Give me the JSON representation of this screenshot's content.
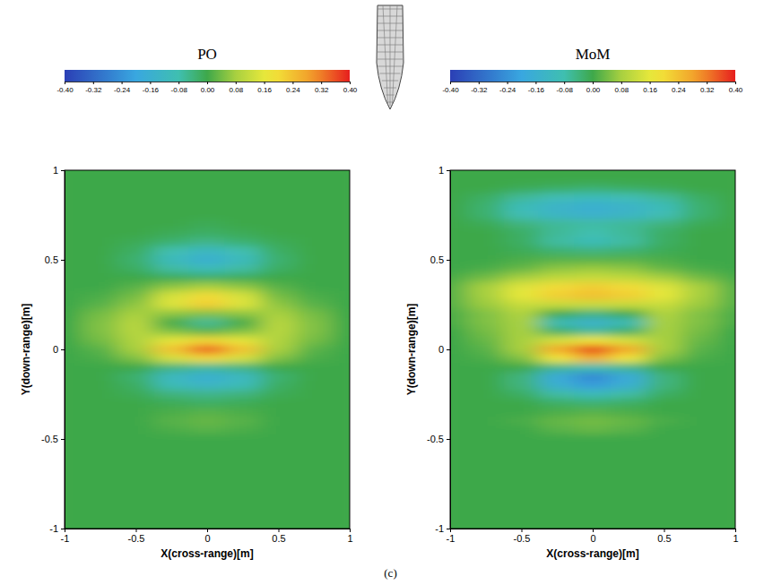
{
  "caption": "(c)",
  "chart_data": [
    {
      "type": "heatmap",
      "title": "PO",
      "xlabel": "X(cross-range)[m]",
      "ylabel": "Y(down-range)[m]",
      "xlim": [
        -1,
        1
      ],
      "ylim": [
        -1,
        1
      ],
      "xticks": [
        -1,
        -0.5,
        0,
        0.5,
        1
      ],
      "yticks": [
        -1,
        -0.5,
        0,
        0.5,
        1
      ],
      "colorbar_range": [
        -0.4,
        0.4
      ],
      "colorbar_ticks": [
        {
          "value": -0.4,
          "label": "-0.40"
        },
        {
          "value": -0.32,
          "label": "-0.32"
        },
        {
          "value": -0.24,
          "label": "-0.24"
        },
        {
          "value": -0.16,
          "label": "-0.16"
        },
        {
          "value": -0.08,
          "label": "-0.08"
        },
        {
          "value": 0,
          "label": "0.00"
        },
        {
          "value": 0.08,
          "label": "0.08"
        },
        {
          "value": 0.16,
          "label": "0.16"
        },
        {
          "value": 0.24,
          "label": "0.24"
        },
        {
          "value": 0.32,
          "label": "0.32"
        },
        {
          "value": 0.4,
          "label": "0.40"
        }
      ],
      "x": [
        -1,
        -0.75,
        -0.5,
        -0.25,
        0,
        0.25,
        0.5,
        0.75,
        1
      ],
      "y": [
        1,
        0.95,
        0.9,
        0.85,
        0.8,
        0.75,
        0.7,
        0.65,
        0.6,
        0.55,
        0.5,
        0.45,
        0.4,
        0.35,
        0.3,
        0.25,
        0.2,
        0.15,
        0.1,
        0.05,
        0,
        -0.05,
        -0.1,
        -0.15,
        -0.2,
        -0.25,
        -0.3,
        -0.35,
        -0.4,
        -0.45,
        -0.5,
        -0.55,
        -0.6,
        -0.65,
        -0.7,
        -0.75,
        -0.8,
        -0.85,
        -0.9,
        -0.95,
        -1
      ],
      "cells": [
        [
          0,
          0,
          0,
          0,
          0,
          0,
          0,
          0,
          0
        ],
        [
          0,
          0,
          0,
          0,
          0,
          0,
          0,
          0,
          0
        ],
        [
          0,
          0,
          0,
          0,
          0,
          0,
          0,
          0,
          0
        ],
        [
          0,
          0,
          0,
          0,
          0,
          0,
          0,
          0,
          0
        ],
        [
          0,
          0,
          0,
          0,
          0,
          0,
          0,
          0,
          0
        ],
        [
          0,
          0,
          0,
          0,
          0,
          0,
          0,
          0,
          0
        ],
        [
          0,
          0,
          0,
          0,
          -0.01,
          0,
          0,
          0,
          0
        ],
        [
          0,
          0,
          0,
          -0.01,
          -0.02,
          -0.01,
          0,
          0,
          0
        ],
        [
          0,
          0,
          -0.01,
          -0.03,
          -0.05,
          -0.03,
          -0.01,
          0,
          0
        ],
        [
          0,
          0,
          -0.02,
          -0.08,
          -0.12,
          -0.08,
          -0.02,
          0,
          0
        ],
        [
          0,
          0,
          -0.03,
          -0.11,
          -0.16,
          -0.11,
          -0.03,
          0,
          0
        ],
        [
          0,
          0,
          -0.02,
          -0.07,
          -0.1,
          -0.07,
          -0.02,
          0,
          0
        ],
        [
          0,
          0,
          0,
          -0.01,
          -0.02,
          -0.01,
          0,
          0,
          0
        ],
        [
          0,
          0,
          0.02,
          0.06,
          0.08,
          0.06,
          0.02,
          0,
          0
        ],
        [
          0,
          0.01,
          0.04,
          0.14,
          0.2,
          0.14,
          0.04,
          0.01,
          0
        ],
        [
          0,
          0.02,
          0.06,
          0.15,
          0.22,
          0.15,
          0.06,
          0.02,
          0
        ],
        [
          0,
          0.04,
          0.08,
          0.06,
          0.05,
          0.06,
          0.08,
          0.04,
          0
        ],
        [
          0,
          0.05,
          0.1,
          0,
          -0.06,
          0,
          0.1,
          0.05,
          0
        ],
        [
          0,
          0.05,
          0.1,
          0.05,
          0.02,
          0.05,
          0.1,
          0.05,
          0
        ],
        [
          0,
          0.04,
          0.09,
          0.16,
          0.2,
          0.16,
          0.09,
          0.04,
          0
        ],
        [
          0,
          0.02,
          0.08,
          0.24,
          0.36,
          0.24,
          0.08,
          0.02,
          0
        ],
        [
          0,
          0.01,
          0.05,
          0.14,
          0.2,
          0.14,
          0.05,
          0.01,
          0
        ],
        [
          0,
          0,
          0,
          -0.04,
          -0.06,
          -0.04,
          0,
          0,
          0
        ],
        [
          0,
          0,
          -0.03,
          -0.12,
          -0.16,
          -0.12,
          -0.03,
          0,
          0
        ],
        [
          0,
          0,
          -0.02,
          -0.1,
          -0.13,
          -0.1,
          -0.02,
          0,
          0
        ],
        [
          0,
          0,
          -0.01,
          -0.04,
          -0.05,
          -0.04,
          -0.01,
          0,
          0
        ],
        [
          0,
          0,
          0,
          -0.01,
          -0.02,
          -0.01,
          0,
          0,
          0
        ],
        [
          0,
          0,
          0,
          0.01,
          0.02,
          0.01,
          0,
          0,
          0
        ],
        [
          0,
          0,
          0,
          0.02,
          0.03,
          0.02,
          0,
          0,
          0
        ],
        [
          0,
          0,
          0,
          0.01,
          0.02,
          0.01,
          0,
          0,
          0
        ],
        [
          0,
          0,
          0,
          0,
          0,
          0,
          0,
          0,
          0
        ],
        [
          0,
          0,
          0,
          0,
          0,
          0,
          0,
          0,
          0
        ],
        [
          0,
          0,
          0,
          0,
          0,
          0,
          0,
          0,
          0
        ],
        [
          0,
          0,
          0,
          0,
          0,
          0,
          0,
          0,
          0
        ],
        [
          0,
          0,
          0,
          0,
          0,
          0,
          0,
          0,
          0
        ],
        [
          0,
          0,
          0,
          0,
          0,
          0,
          0,
          0,
          0
        ],
        [
          0,
          0,
          0,
          0,
          0,
          0,
          0,
          0,
          0
        ],
        [
          0,
          0,
          0,
          0,
          0,
          0,
          0,
          0,
          0
        ],
        [
          0,
          0,
          0,
          0,
          0,
          0,
          0,
          0,
          0
        ],
        [
          0,
          0,
          0,
          0,
          0,
          0,
          0,
          0,
          0
        ],
        [
          0,
          0,
          0,
          0,
          0,
          0,
          0,
          0,
          0
        ]
      ]
    },
    {
      "type": "heatmap",
      "title": "MoM",
      "xlabel": "X(cross-range)[m]",
      "ylabel": "Y(down-range)[m]",
      "xlim": [
        -1,
        1
      ],
      "ylim": [
        -1,
        1
      ],
      "xticks": [
        -1,
        -0.5,
        0,
        0.5,
        1
      ],
      "yticks": [
        -1,
        -0.5,
        0,
        0.5,
        1
      ],
      "colorbar_range": [
        -0.4,
        0.4
      ],
      "colorbar_ticks": [
        {
          "value": -0.4,
          "label": "-0.40"
        },
        {
          "value": -0.32,
          "label": "-0.32"
        },
        {
          "value": -0.24,
          "label": "-0.24"
        },
        {
          "value": -0.16,
          "label": "-0.16"
        },
        {
          "value": -0.08,
          "label": "-0.08"
        },
        {
          "value": 0,
          "label": "0.00"
        },
        {
          "value": 0.08,
          "label": "0.08"
        },
        {
          "value": 0.16,
          "label": "0.16"
        },
        {
          "value": 0.24,
          "label": "0.24"
        },
        {
          "value": 0.32,
          "label": "0.32"
        },
        {
          "value": 0.4,
          "label": "0.40"
        }
      ],
      "x": [
        -1,
        -0.75,
        -0.5,
        -0.25,
        0,
        0.25,
        0.5,
        0.75,
        1
      ],
      "y": [
        1,
        0.95,
        0.9,
        0.85,
        0.8,
        0.75,
        0.7,
        0.65,
        0.6,
        0.55,
        0.5,
        0.45,
        0.4,
        0.35,
        0.3,
        0.25,
        0.2,
        0.15,
        0.1,
        0.05,
        0,
        -0.05,
        -0.1,
        -0.15,
        -0.2,
        -0.25,
        -0.3,
        -0.35,
        -0.4,
        -0.45,
        -0.5,
        -0.55,
        -0.6,
        -0.65,
        -0.7,
        -0.75,
        -0.8,
        -0.85,
        -0.9,
        -0.95,
        -1
      ],
      "cells": [
        [
          0,
          0,
          0,
          0,
          0,
          0,
          0,
          0,
          0
        ],
        [
          0,
          0,
          0,
          0,
          0,
          0,
          0,
          0,
          0
        ],
        [
          0,
          0,
          -0.01,
          -0.02,
          -0.03,
          -0.02,
          -0.01,
          0,
          0
        ],
        [
          0,
          -0.02,
          -0.06,
          -0.09,
          -0.1,
          -0.09,
          -0.06,
          -0.02,
          0
        ],
        [
          0,
          -0.03,
          -0.1,
          -0.14,
          -0.16,
          -0.14,
          -0.1,
          -0.03,
          0
        ],
        [
          0,
          -0.03,
          -0.09,
          -0.13,
          -0.15,
          -0.13,
          -0.09,
          -0.03,
          0
        ],
        [
          0,
          -0.01,
          -0.04,
          -0.06,
          -0.07,
          -0.06,
          -0.04,
          -0.01,
          0
        ],
        [
          0,
          0,
          -0.02,
          -0.06,
          -0.08,
          -0.06,
          -0.02,
          0,
          0
        ],
        [
          0,
          0,
          -0.02,
          -0.07,
          -0.1,
          -0.07,
          -0.02,
          0,
          0
        ],
        [
          0,
          0,
          -0.01,
          -0.03,
          -0.04,
          -0.03,
          -0.01,
          0,
          0
        ],
        [
          0,
          0,
          0.01,
          0.02,
          0.02,
          0.02,
          0.01,
          0,
          0
        ],
        [
          0,
          0.01,
          0.03,
          0.06,
          0.07,
          0.06,
          0.03,
          0.01,
          0
        ],
        [
          0.01,
          0.04,
          0.08,
          0.11,
          0.12,
          0.11,
          0.08,
          0.04,
          0.01
        ],
        [
          0.02,
          0.08,
          0.15,
          0.2,
          0.22,
          0.2,
          0.15,
          0.08,
          0.02
        ],
        [
          0.02,
          0.08,
          0.16,
          0.22,
          0.24,
          0.22,
          0.16,
          0.08,
          0.02
        ],
        [
          0.02,
          0.07,
          0.12,
          0.12,
          0.12,
          0.12,
          0.12,
          0.07,
          0.02
        ],
        [
          0.01,
          0.05,
          0.09,
          0,
          -0.04,
          0,
          0.09,
          0.05,
          0.01
        ],
        [
          0.01,
          0.05,
          0.08,
          -0.1,
          -0.15,
          -0.1,
          0.08,
          0.05,
          0.01
        ],
        [
          0,
          0.04,
          0.08,
          -0.02,
          -0.06,
          -0.02,
          0.08,
          0.04,
          0
        ],
        [
          0,
          0.03,
          0.08,
          0.14,
          0.18,
          0.14,
          0.08,
          0.03,
          0
        ],
        [
          0,
          0.02,
          0.08,
          0.28,
          0.4,
          0.28,
          0.08,
          0.02,
          0
        ],
        [
          0,
          0.01,
          0.05,
          0.18,
          0.26,
          0.18,
          0.05,
          0.01,
          0
        ],
        [
          0,
          0,
          0,
          -0.05,
          -0.08,
          -0.05,
          0,
          0,
          0
        ],
        [
          0,
          0,
          -0.04,
          -0.18,
          -0.26,
          -0.18,
          -0.04,
          0,
          0
        ],
        [
          0,
          0,
          -0.04,
          -0.16,
          -0.22,
          -0.16,
          -0.04,
          0,
          0
        ],
        [
          0,
          0,
          -0.02,
          -0.07,
          -0.1,
          -0.07,
          -0.02,
          0,
          0
        ],
        [
          0,
          0,
          0,
          -0.02,
          -0.03,
          -0.02,
          0,
          0,
          0
        ],
        [
          0,
          0,
          0,
          0.01,
          0.02,
          0.01,
          0,
          0,
          0
        ],
        [
          0,
          0,
          0.01,
          0.03,
          0.04,
          0.03,
          0.01,
          0,
          0
        ],
        [
          0,
          0,
          0,
          0.02,
          0.03,
          0.02,
          0,
          0,
          0
        ],
        [
          0,
          0,
          0,
          0,
          0,
          0,
          0,
          0,
          0
        ],
        [
          0,
          0,
          0,
          0,
          0,
          0,
          0,
          0,
          0
        ],
        [
          0,
          0,
          0,
          0,
          0,
          0,
          0,
          0,
          0
        ],
        [
          0,
          0,
          0,
          0,
          0,
          0,
          0,
          0,
          0
        ],
        [
          0,
          0,
          0,
          0,
          0,
          0,
          0,
          0,
          0
        ],
        [
          0,
          0,
          0,
          0,
          0,
          0,
          0,
          0,
          0
        ],
        [
          0,
          0,
          0,
          0,
          0,
          0,
          0,
          0,
          0
        ],
        [
          0,
          0,
          0,
          0,
          0,
          0,
          0,
          0,
          0
        ],
        [
          0,
          0,
          0,
          0,
          0,
          0,
          0,
          0,
          0
        ],
        [
          0,
          0,
          0,
          0,
          0,
          0,
          0,
          0,
          0
        ],
        [
          0,
          0,
          0,
          0,
          0,
          0,
          0,
          0,
          0
        ]
      ]
    }
  ]
}
